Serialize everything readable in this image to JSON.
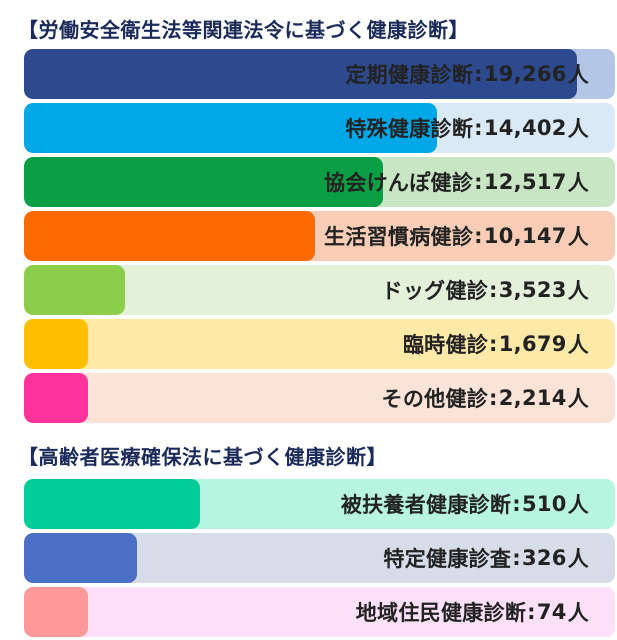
{
  "chart_data": [
    {
      "type": "bar",
      "title": "【労働安全衛生法等関連法令に基づく健康診断】",
      "categories": [
        "定期健康診断",
        "特殊健康診断",
        "協会けんぽ健診",
        "生活習慣病健診",
        "ドッグ健診",
        "臨時健診",
        "その他健診"
      ],
      "values": [
        19266,
        14402,
        12517,
        10147,
        3523,
        1679,
        2214
      ],
      "display_values": [
        "19,266",
        "14,402",
        "12,517",
        "10,147",
        "3,523",
        "1,679",
        "2,214"
      ],
      "unit": "人",
      "separator": ":",
      "colors": [
        "#2e4a8e",
        "#00a8e8",
        "#0a9e45",
        "#ff6a00",
        "#8cce4a",
        "#ffbf00",
        "#ff3399"
      ],
      "track_colors": [
        "#b4c6e6",
        "#d9e9f6",
        "#c8e6c4",
        "#f9cdb5",
        "#e3f0da",
        "#ffe9a8",
        "#fbe3d7"
      ],
      "orientation": "horizontal"
    },
    {
      "type": "bar",
      "title": "【高齢者医療確保法に基づく健康診断】",
      "categories": [
        "被扶養者健康診断",
        "特定健康診査",
        "地域住民健康診断"
      ],
      "values": [
        510,
        326,
        74
      ],
      "display_values": [
        "510",
        "326",
        "74"
      ],
      "unit": "人",
      "separator": ":",
      "colors": [
        "#00cc99",
        "#4a6fc4",
        "#ff9999"
      ],
      "track_colors": [
        "#b8f5e0",
        "#d6dde8",
        "#fce0f8"
      ],
      "orientation": "horizontal"
    }
  ]
}
